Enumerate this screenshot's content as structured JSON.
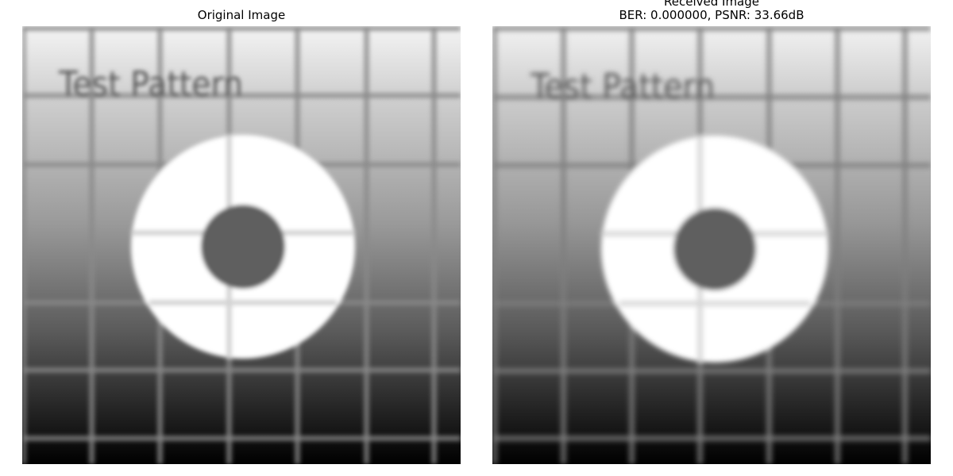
{
  "figure": {
    "left_panel": {
      "title": "Original Image",
      "image_text": "Test Pattern"
    },
    "right_panel": {
      "title_line1": "Received Image",
      "title_line2": "BER: 0.000000, PSNR: 33.66dB",
      "image_text": "Test Pattern"
    },
    "colors": {
      "gradient_top": "#f2f2f2",
      "gradient_bottom": "#000000",
      "grid_line": "#7a7a7a",
      "ring": "#ffffff",
      "center_dot": "#5f5f5f",
      "text": "#555555"
    }
  }
}
